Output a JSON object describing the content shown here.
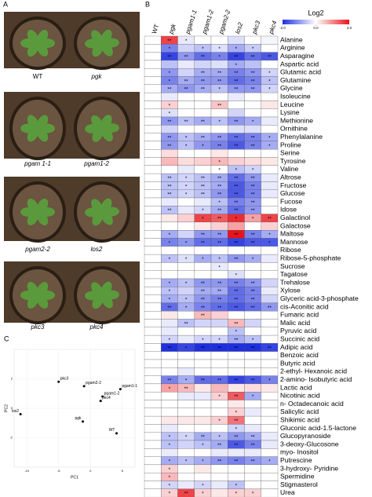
{
  "panel_a": {
    "label": "A",
    "photos": [
      "WT",
      "pgk",
      "pgam 1-1",
      "pgam1-2",
      "pgam2-2",
      "los2",
      "pkc3",
      "pkc4"
    ]
  },
  "chart_data": [
    {
      "type": "heatmap",
      "panel_label": "B",
      "legend_title": "Log2",
      "columns": [
        "WT",
        "pgk",
        "pgam1-1",
        "pgam1-2",
        "pgam2-2",
        "los2",
        "pkc3",
        "pkc4"
      ],
      "rows": [
        "Alanine",
        "Arginine",
        "Asparagine",
        "Aspartic acid",
        "Glutamic acid",
        "Glutamine",
        "Glycine",
        "Isoleucine",
        "Leucine",
        "Lysine",
        "Methionine",
        "Ornithine",
        "Phenylalanine",
        "Proline",
        "Serine",
        "Tyrosine",
        "Valine",
        "Altrose",
        "Fructose",
        "Glucose",
        "Fucose",
        "Idose",
        "Galactinol",
        "Galactose",
        "Maltose",
        "Mannose",
        "Ribose",
        "Ribose-5-phosphate",
        "Sucrose",
        "Tagatose",
        "Trehalose",
        "Xylose",
        "Glyceric acid-3-phosphate",
        "cis-Aconitic acid",
        "Fumaric acid",
        "Malic acid",
        "Pyruvic acid",
        "Succinic acid",
        "Adipic acid",
        "Benzoic acid",
        "Butyric acid",
        "2-ethyl- Hexanoic acid",
        "2-amino- Isobutyric acid",
        "Lactic acid",
        "Nicotinic acid",
        "n- Octadecanoic acid",
        "Salicylic acid",
        "Shikimic acid",
        "Gluconic acid-1.5-lactone",
        "Glucopyranoside",
        "3-deoxy-Glucosone",
        "myo- Inositol",
        "Putrescine",
        "3-hydroxy- Pyridine",
        "Spermidine",
        "Stigmasterol",
        "Urea"
      ],
      "values": [
        [
          0,
          1.6,
          -0.2,
          0,
          0,
          -0.3,
          0,
          -0.1
        ],
        [
          0,
          -1.2,
          -0.4,
          -0.6,
          -0.3,
          -0.8,
          -0.5,
          0
        ],
        [
          0,
          -1.8,
          -1.0,
          -1.4,
          -1.2,
          -1.8,
          -1.4,
          -1.6
        ],
        [
          0,
          -0.6,
          -0.2,
          -0.4,
          -0.3,
          -0.8,
          -0.6,
          0
        ],
        [
          0,
          -1.0,
          -0.4,
          -0.8,
          -0.8,
          -1.2,
          -1.0,
          -0.4
        ],
        [
          0,
          -1.2,
          -0.8,
          -1.0,
          -1.0,
          -1.4,
          -1.2,
          -0.6
        ],
        [
          0,
          -0.8,
          -1.0,
          -0.8,
          -0.6,
          -1.0,
          -1.0,
          -0.4
        ],
        [
          0,
          -0.2,
          0,
          0,
          0,
          -0.2,
          0,
          0
        ],
        [
          0,
          0.4,
          0,
          0,
          0.5,
          0,
          0,
          0.2
        ],
        [
          0,
          -0.3,
          0,
          0,
          0,
          -0.4,
          0,
          0
        ],
        [
          0,
          -1.0,
          -0.6,
          -0.8,
          -0.6,
          -1.0,
          -0.8,
          -0.2
        ],
        [
          0,
          -0.4,
          0,
          0,
          0,
          -0.3,
          -0.3,
          0
        ],
        [
          0,
          -1.0,
          -0.6,
          -0.8,
          -1.0,
          -1.4,
          -1.2,
          -0.8
        ],
        [
          0,
          -1.0,
          -0.6,
          -1.0,
          -1.2,
          -1.6,
          -1.2,
          -0.8
        ],
        [
          0,
          0.3,
          0,
          0,
          0.2,
          0,
          0,
          0
        ],
        [
          0,
          0.6,
          0.3,
          0.4,
          0.6,
          0.4,
          0.3,
          0.2
        ],
        [
          0,
          0,
          -0.2,
          0,
          0,
          -0.6,
          -0.4,
          0
        ],
        [
          0,
          -0.6,
          -0.4,
          -0.6,
          -0.8,
          -1.4,
          -1.0,
          -0.2
        ],
        [
          0,
          -0.6,
          -0.4,
          -0.6,
          -0.8,
          -1.6,
          -1.2,
          -0.2
        ],
        [
          0,
          -0.6,
          -0.4,
          -0.6,
          -1.0,
          -1.6,
          -1.2,
          -0.2
        ],
        [
          0,
          -0.2,
          0,
          -0.2,
          -0.6,
          -1.2,
          -1.0,
          0
        ],
        [
          0,
          -0.6,
          -0.2,
          -0.4,
          -0.8,
          -1.4,
          -1.0,
          0
        ],
        [
          0,
          0.2,
          0.4,
          1.6,
          1.4,
          1.8,
          0.8,
          1.6
        ],
        [
          0,
          0,
          0,
          0.2,
          0.4,
          0.8,
          0,
          0.4
        ],
        [
          0,
          -0.8,
          -0.4,
          -1.0,
          -1.0,
          2.0,
          -1.2,
          -0.8
        ],
        [
          0,
          -1.2,
          -1.0,
          -1.4,
          -1.4,
          -1.8,
          -1.6,
          -1.6
        ],
        [
          0,
          0,
          0,
          0,
          0,
          0,
          0,
          0
        ],
        [
          0,
          -0.6,
          -0.3,
          -0.8,
          -0.6,
          -1.0,
          -0.8,
          -0.2
        ],
        [
          0,
          0,
          0,
          0,
          -0.2,
          0,
          0,
          0
        ],
        [
          0,
          0,
          0,
          0,
          0,
          -0.3,
          0,
          0
        ],
        [
          0,
          -0.8,
          -0.6,
          -1.0,
          -1.0,
          -1.2,
          -1.0,
          -0.4
        ],
        [
          0,
          -0.6,
          -0.4,
          -0.8,
          -0.8,
          -1.4,
          -1.2,
          -0.2
        ],
        [
          0,
          -0.8,
          -0.6,
          -1.0,
          -1.2,
          -1.4,
          -1.2,
          -0.4
        ],
        [
          0,
          -1.4,
          -0.8,
          -1.2,
          -1.4,
          -1.6,
          -1.4,
          -1.0
        ],
        [
          0,
          0.2,
          0,
          0.6,
          0.4,
          0,
          0,
          0
        ],
        [
          0,
          -0.2,
          -0.6,
          -0.4,
          -0.4,
          0.6,
          -0.4,
          0
        ],
        [
          0,
          -0.2,
          0,
          0,
          0,
          -0.6,
          0,
          0
        ],
        [
          0,
          -0.4,
          -0.2,
          -0.4,
          -0.4,
          -0.8,
          -0.6,
          0
        ],
        [
          0,
          -2.0,
          -1.8,
          -2.0,
          -2.0,
          -2.0,
          -2.0,
          -1.8
        ],
        [
          0,
          0,
          0,
          0,
          0,
          0,
          0,
          0
        ],
        [
          0,
          0,
          0,
          0,
          0,
          0,
          0,
          0
        ],
        [
          0,
          0,
          -0.2,
          0,
          0,
          0,
          0,
          0
        ],
        [
          0,
          -1.2,
          -0.8,
          -1.4,
          -1.4,
          -1.8,
          -1.6,
          -1.2
        ],
        [
          0,
          0.8,
          0.6,
          0.2,
          0.6,
          0.2,
          0.3,
          0.2
        ],
        [
          0,
          0,
          -0.2,
          -0.2,
          0.4,
          1.4,
          -0.8,
          0
        ],
        [
          0,
          0,
          0,
          0,
          0,
          0.2,
          0,
          0
        ],
        [
          0,
          0,
          0,
          0,
          0,
          0.4,
          -0.2,
          0
        ],
        [
          0,
          0.2,
          0.2,
          0.2,
          0.4,
          1.2,
          0,
          0
        ],
        [
          0,
          -0.2,
          0,
          0,
          0,
          -0.4,
          -0.2,
          0
        ],
        [
          0,
          -0.6,
          -0.4,
          -0.8,
          -0.6,
          -1.0,
          -0.8,
          -0.2
        ],
        [
          0,
          -0.6,
          -0.4,
          -0.6,
          -0.8,
          -1.6,
          -1.2,
          -0.2
        ],
        [
          0,
          -0.2,
          0,
          0,
          -0.2,
          -0.2,
          -0.2,
          0
        ],
        [
          0,
          -0.8,
          -0.6,
          -0.8,
          -1.0,
          -1.2,
          -1.0,
          -0.8
        ],
        [
          0,
          0.4,
          0,
          0.2,
          0,
          0,
          0,
          0
        ],
        [
          0,
          0.6,
          0,
          0,
          0,
          0,
          0,
          0
        ],
        [
          0,
          -0.4,
          -0.2,
          -0.4,
          -0.2,
          -0.6,
          0,
          0
        ],
        [
          0,
          0.4,
          1.6,
          0.4,
          0.2,
          0.4,
          0.4,
          0
        ]
      ],
      "stars": [
        [
          null,
          "**",
          "*",
          null,
          null,
          null,
          null,
          null
        ],
        [
          null,
          "*",
          null,
          "*",
          "*",
          "*",
          "*",
          null
        ],
        [
          null,
          "**",
          "**",
          "**",
          "*",
          "**",
          "**",
          "**"
        ],
        [
          null,
          null,
          null,
          null,
          null,
          "*",
          null,
          null
        ],
        [
          null,
          "*",
          null,
          "**",
          "**",
          "**",
          "**",
          "*"
        ],
        [
          null,
          "*",
          "**",
          "**",
          "**",
          "**",
          "**",
          "*"
        ],
        [
          null,
          "**",
          "**",
          "**",
          "*",
          "**",
          "**",
          "*"
        ],
        [
          null,
          null,
          null,
          null,
          null,
          null,
          null,
          null
        ],
        [
          null,
          "*",
          null,
          null,
          "**",
          null,
          null,
          null
        ],
        [
          null,
          "*",
          null,
          null,
          null,
          null,
          null,
          null
        ],
        [
          null,
          "**",
          "**",
          "**",
          "*",
          "**",
          "*",
          null
        ],
        [
          null,
          null,
          null,
          null,
          null,
          null,
          null,
          null
        ],
        [
          null,
          "**",
          "*",
          "**",
          "**",
          "**",
          "**",
          "*"
        ],
        [
          null,
          "**",
          "*",
          "*",
          "**",
          "**",
          "**",
          "*"
        ],
        [
          null,
          null,
          null,
          null,
          null,
          null,
          null,
          null
        ],
        [
          null,
          null,
          null,
          null,
          "*",
          null,
          null,
          null
        ],
        [
          null,
          null,
          null,
          null,
          "*",
          "*",
          "*",
          null
        ],
        [
          null,
          "**",
          "*",
          "**",
          "**",
          "**",
          "**",
          null
        ],
        [
          null,
          "**",
          "*",
          "**",
          "**",
          "**",
          "**",
          null
        ],
        [
          null,
          "**",
          "*",
          "**",
          "**",
          "**",
          "**",
          null
        ],
        [
          null,
          null,
          null,
          null,
          "*",
          "**",
          "**",
          null
        ],
        [
          null,
          "**",
          null,
          "*",
          "**",
          "**",
          "**",
          null
        ],
        [
          null,
          null,
          null,
          "*",
          "**",
          "*",
          "*",
          "**"
        ],
        [
          null,
          null,
          null,
          null,
          null,
          null,
          null,
          null
        ],
        [
          null,
          "*",
          null,
          "**",
          "**",
          "**",
          "**",
          "*"
        ],
        [
          null,
          "*",
          "*",
          "**",
          "**",
          "**",
          "**",
          "*"
        ],
        [
          null,
          null,
          null,
          null,
          null,
          null,
          null,
          null
        ],
        [
          null,
          "*",
          "*",
          "*",
          "*",
          "**",
          "*",
          null
        ],
        [
          null,
          null,
          null,
          null,
          "*",
          null,
          null,
          null
        ],
        [
          null,
          null,
          null,
          null,
          null,
          "*",
          null,
          null
        ],
        [
          null,
          "*",
          "*",
          "**",
          "**",
          "**",
          "**",
          null
        ],
        [
          null,
          "*",
          null,
          "**",
          "**",
          "**",
          "**",
          null
        ],
        [
          null,
          "*",
          "*",
          "**",
          "**",
          "**",
          "**",
          null
        ],
        [
          null,
          "**",
          "*",
          "**",
          "**",
          "**",
          "**",
          "**"
        ],
        [
          null,
          null,
          null,
          "**",
          null,
          null,
          null,
          null
        ],
        [
          null,
          null,
          "**",
          null,
          null,
          "**",
          null,
          null
        ],
        [
          null,
          null,
          null,
          null,
          null,
          "*",
          null,
          null
        ],
        [
          null,
          "*",
          null,
          "*",
          "*",
          "**",
          "*",
          null
        ],
        [
          null,
          "**",
          "*",
          "**",
          "**",
          "**",
          "**",
          "**"
        ],
        [
          null,
          null,
          null,
          null,
          null,
          null,
          null,
          null
        ],
        [
          null,
          null,
          null,
          null,
          null,
          null,
          null,
          null
        ],
        [
          null,
          null,
          null,
          null,
          null,
          null,
          null,
          null
        ],
        [
          null,
          "**",
          "*",
          "**",
          "**",
          "**",
          "**",
          "*"
        ],
        [
          null,
          "*",
          "**",
          null,
          null,
          null,
          null,
          null
        ],
        [
          null,
          null,
          null,
          null,
          "*",
          "**",
          "*",
          null
        ],
        [
          null,
          null,
          null,
          null,
          null,
          null,
          null,
          null
        ],
        [
          null,
          null,
          null,
          null,
          null,
          "*",
          null,
          null
        ],
        [
          null,
          null,
          null,
          null,
          "*",
          "**",
          null,
          null
        ],
        [
          null,
          null,
          null,
          null,
          null,
          "*",
          null,
          null
        ],
        [
          null,
          "*",
          "*",
          "**",
          "*",
          "**",
          "**",
          null
        ],
        [
          null,
          "*",
          null,
          "*",
          "**",
          "**",
          "**",
          null
        ],
        [
          null,
          null,
          null,
          null,
          null,
          null,
          null,
          null
        ],
        [
          null,
          "*",
          "*",
          "*",
          "**",
          "**",
          "**",
          "*"
        ],
        [
          null,
          "*",
          null,
          null,
          null,
          null,
          null,
          null
        ],
        [
          null,
          "*",
          null,
          null,
          null,
          null,
          null,
          null
        ],
        [
          null,
          "*",
          null,
          "*",
          null,
          "*",
          null,
          null
        ],
        [
          null,
          "*",
          "**",
          "*",
          null,
          "*",
          "*",
          null
        ]
      ],
      "zlim": [
        -2,
        2
      ],
      "zticks": [
        {
          "value": -2,
          "label": "-2.0"
        },
        {
          "value": 0,
          "label": "0.0"
        },
        {
          "value": 2,
          "label": "2.0"
        }
      ],
      "colors": {
        "low": "#1f2fe0",
        "mid": "#ffffff",
        "high": "#e8141c"
      }
    },
    {
      "type": "scatter",
      "panel_label": "C",
      "xlabel": "PC1",
      "ylabel": "PC2",
      "color": "#000000",
      "labels": [
        "pkc3",
        "pgam2-2",
        "pgam1-1",
        "pgam1-2",
        "pkc4",
        "los2",
        "pgk",
        "WT"
      ],
      "x": [
        -5,
        -1,
        4.7,
        1.9,
        1.6,
        -11,
        -1.2,
        4.1
      ],
      "y": [
        1.8,
        1.5,
        1.3,
        0.8,
        0.5,
        -0.4,
        -0.9,
        -1.7
      ],
      "xlim": [
        -12,
        7
      ],
      "ylim": [
        -4,
        4
      ],
      "xticks": [
        -10,
        -5,
        0,
        5
      ],
      "yticks": [
        -2,
        0,
        2
      ]
    }
  ]
}
